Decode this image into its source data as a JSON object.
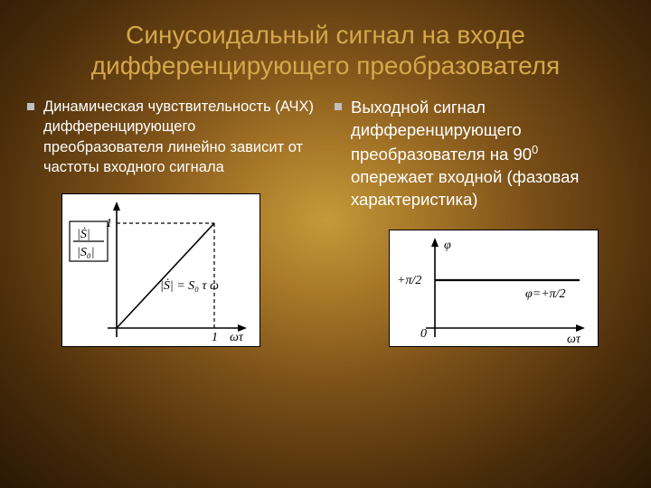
{
  "title": "Синусоидальный сигнал на входе дифференцирующего преобразователя",
  "left": {
    "text": "Динамическая чувствительность (АЧХ) дифференцирующего преобразователя линейно зависит от частоты входного сигнала",
    "chart": {
      "type": "line",
      "background_color": "#ffffff",
      "axis_color": "#000000",
      "y_label": "|Ṡ|/|S₀|",
      "x_label": "ωτ",
      "line_label": "|Ṡ| = S₀ τ ω",
      "xlim": [
        0,
        1.2
      ],
      "ylim": [
        0,
        1.2
      ],
      "tick_x": "1",
      "tick_y": "1",
      "line": {
        "x0": 0,
        "y0": 0,
        "x1": 1,
        "y1": 1
      },
      "dash_guides": true,
      "font_family": "Times New Roman",
      "label_fontsize": 14,
      "line_width": 1.6
    }
  },
  "right": {
    "text_html": "Выходной сигнал дифференцирующего преобразователя на 90<sup>0</sup> опережает входной (фазовая характеристика)",
    "chart": {
      "type": "line",
      "background_color": "#ffffff",
      "axis_color": "#000000",
      "y_label": "φ",
      "x_label": "ωτ",
      "const_value_label": "+π/2",
      "line_label": "φ=+π/2",
      "origin_label": "0",
      "line_y": 0.5,
      "font_family": "Times New Roman",
      "label_fontsize": 14,
      "line_width": 2.2
    }
  },
  "colors": {
    "title_color": "#d4a84a",
    "text_color": "#ffffff",
    "bullet_color": "#bfbfbf",
    "bg_center": "#c49a3a",
    "bg_edge": "#2a1805"
  }
}
